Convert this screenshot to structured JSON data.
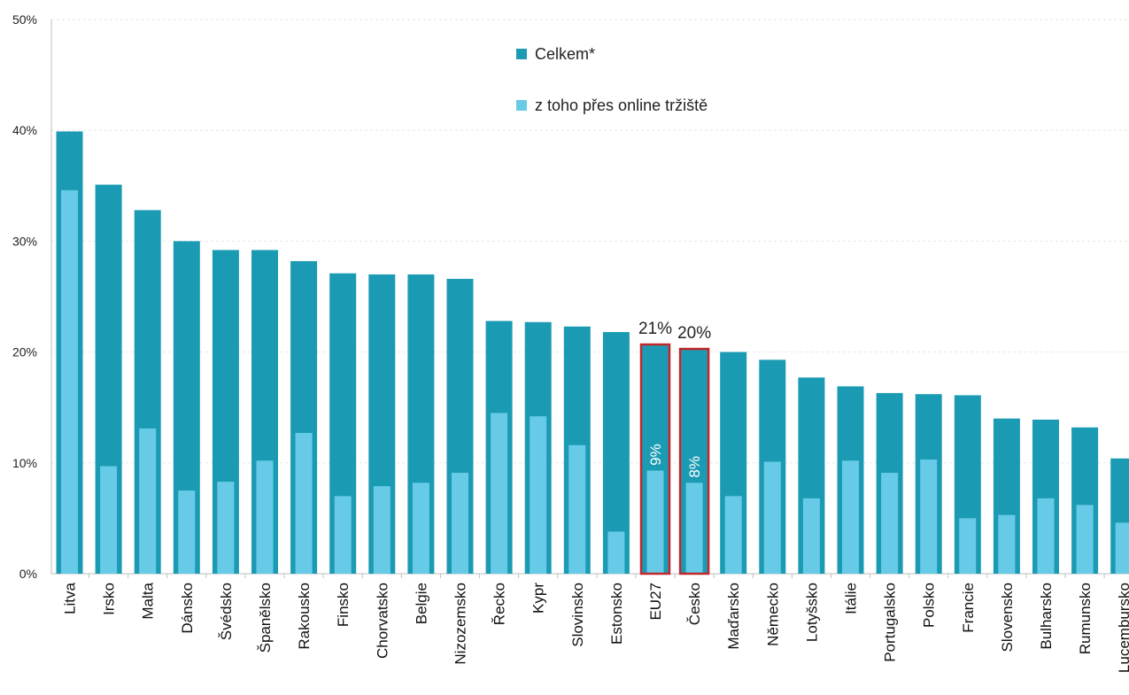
{
  "chart_data": {
    "type": "bar",
    "categories": [
      "Litva",
      "Irsko",
      "Malta",
      "Dánsko",
      "Švédsko",
      "Španělsko",
      "Rakousko",
      "Finsko",
      "Chorvatsko",
      "Belgie",
      "Nizozemsko",
      "Řecko",
      "Kypr",
      "Slovinsko",
      "Estonsko",
      "EU27",
      "Česko",
      "Maďarsko",
      "Německo",
      "Lotyšsko",
      "Itálie",
      "Portugalsko",
      "Polsko",
      "Francie",
      "Slovensko",
      "Bulharsko",
      "Rumunsko",
      "Lucembursko"
    ],
    "series": [
      {
        "name": "Celkem*",
        "color": "#1b9bb3",
        "values": [
          39.9,
          35.1,
          32.8,
          30.0,
          29.2,
          29.2,
          28.2,
          27.1,
          27.0,
          27.0,
          26.6,
          22.8,
          22.7,
          22.3,
          21.8,
          20.6,
          20.2,
          20.0,
          19.3,
          17.7,
          16.9,
          16.3,
          16.2,
          16.1,
          14.0,
          13.9,
          13.2,
          10.4
        ]
      },
      {
        "name": "z toho přes online tržiště",
        "color": "#67cbe8",
        "values": [
          34.6,
          9.7,
          13.1,
          7.5,
          8.3,
          10.2,
          12.7,
          7.0,
          7.9,
          8.2,
          9.1,
          14.5,
          14.2,
          11.6,
          3.8,
          9.3,
          8.2,
          7.0,
          10.1,
          6.8,
          10.2,
          9.1,
          10.3,
          5.0,
          5.3,
          6.8,
          6.2,
          4.6
        ]
      }
    ],
    "ylim": [
      0,
      50
    ],
    "yticks": [
      "0%",
      "10%",
      "20%",
      "30%",
      "40%",
      "50%"
    ],
    "grid": true,
    "legend_position": "top-center",
    "highlighted": [
      {
        "category": "EU27",
        "total_label": "21%",
        "online_label": "9%",
        "outline_color": "#c0282d"
      },
      {
        "category": "Česko",
        "total_label": "20%",
        "online_label": "8%",
        "outline_color": "#c0282d"
      }
    ]
  }
}
